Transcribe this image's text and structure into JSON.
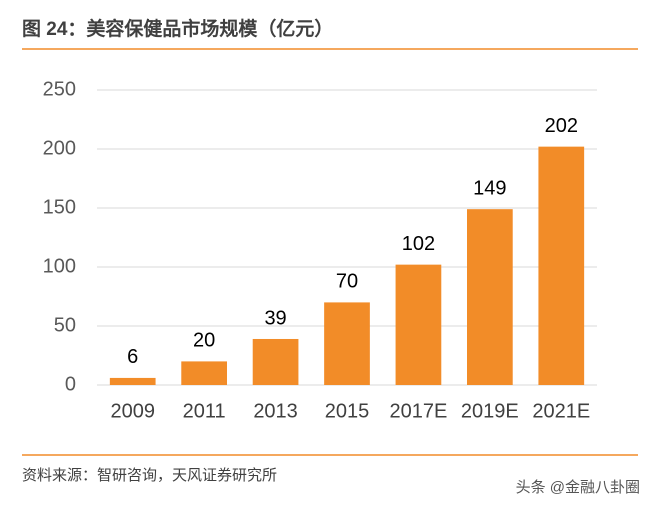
{
  "chart_data": {
    "type": "bar",
    "title": "图 24：美容保健品市场规模（亿元）",
    "categories": [
      "2009",
      "2011",
      "2013",
      "2015",
      "2017E",
      "2019E",
      "2021E"
    ],
    "values": [
      6,
      20,
      39,
      70,
      102,
      149,
      202
    ],
    "color": "#f28c28",
    "ylim": [
      0,
      250
    ],
    "yticks": [
      0,
      50,
      100,
      150,
      200,
      250
    ],
    "grid": true,
    "source": "资料来源：智研咨询，天风证券研究所",
    "watermark": "头条 @金融八卦圈"
  }
}
